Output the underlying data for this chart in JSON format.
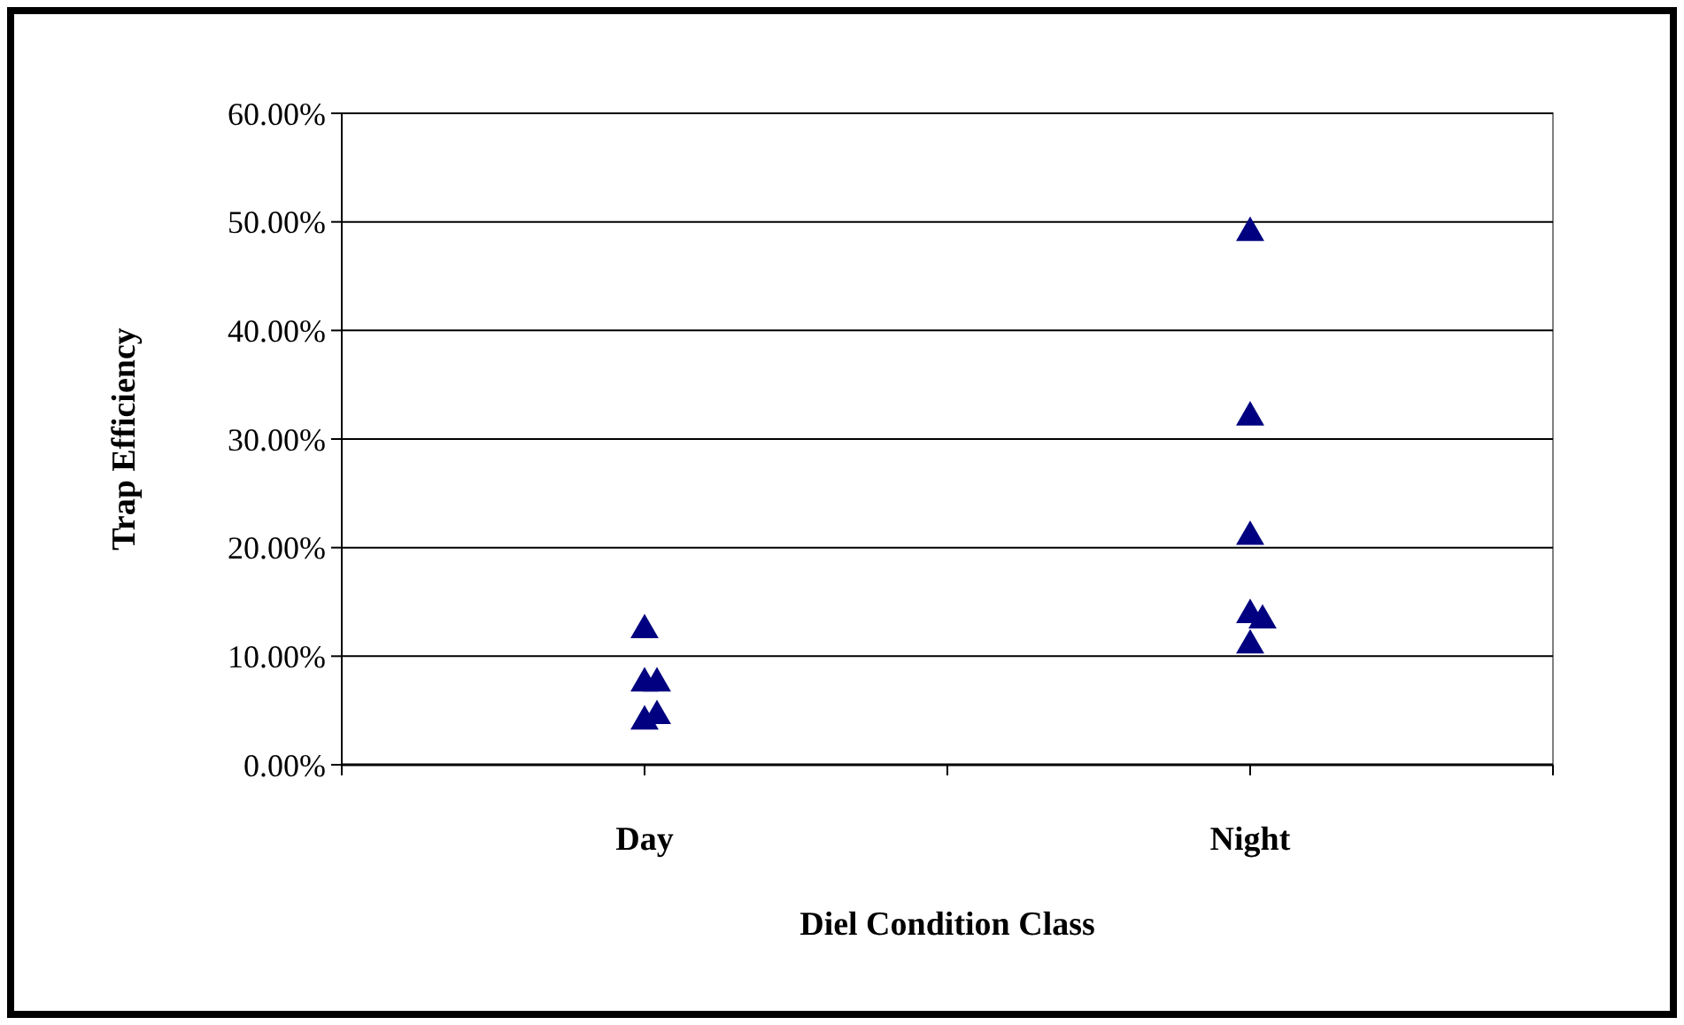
{
  "chart_data": {
    "type": "scatter",
    "xlabel": "Diel Condition Class",
    "ylabel": "Trap Efficiency",
    "categories": [
      "Day",
      "Night"
    ],
    "series": [
      {
        "color": "#000080",
        "x": [
          "Day",
          "Day",
          "Day",
          "Day",
          "Day",
          "Night",
          "Night",
          "Night",
          "Night",
          "Night",
          "Night"
        ],
        "values": [
          12.4,
          7.5,
          7.5,
          4,
          4.5,
          49,
          32,
          21,
          13.8,
          13.3,
          11
        ]
      }
    ],
    "marker": "triangle",
    "ylim": [
      0,
      60
    ],
    "yticks": [
      {
        "value": 0,
        "label": "0.00%"
      },
      {
        "value": 10,
        "label": "10.00%"
      },
      {
        "value": 20,
        "label": "20.00%"
      },
      {
        "value": 30,
        "label": "30.00%"
      },
      {
        "value": 40,
        "label": "40.00%"
      },
      {
        "value": 50,
        "label": "50.00%"
      },
      {
        "value": 60,
        "label": "60.00%"
      }
    ],
    "grid": "y"
  }
}
